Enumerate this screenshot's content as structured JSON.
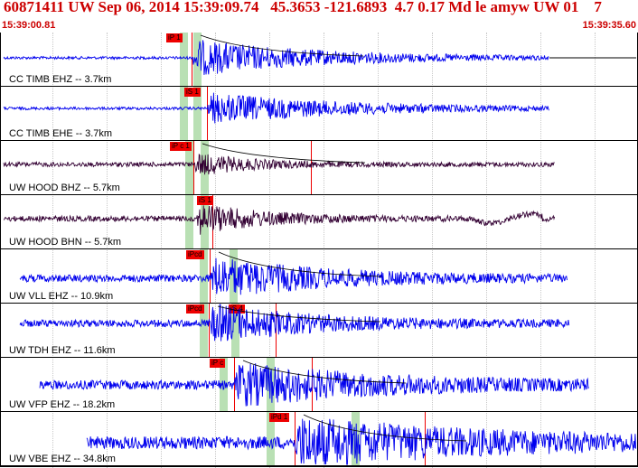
{
  "header": {
    "title": "60871411 UW Sep 06, 2014 15:39:09.74   45.3653 -121.6893  4.7 0.17 Md le amyw UW 01    7",
    "start_time": "15:39:00.81",
    "end_time": "15:39:35.60"
  },
  "colors": {
    "header_text": "#cc0000",
    "trace_primary": "#0000ee",
    "trace_secondary": "#330033",
    "pick_flag": "#ee0000",
    "phase_band": "#b9e0b4"
  },
  "channels": [
    {
      "label": "CC TIMB EHZ -- 3.7km",
      "pick": "iP 1"
    },
    {
      "label": "CC TIMB EHE -- 3.7km",
      "pick": "iS 1"
    },
    {
      "label": "UW HOOD BHZ -- 5.7km",
      "pick": "iP c 1"
    },
    {
      "label": "UW HOOD BHN -- 5.7km",
      "pick": "iS 1"
    },
    {
      "label": "UW VLL EHZ -- 10.9km",
      "pick": "iPcd"
    },
    {
      "label": "UW TDH EHZ -- 11.6km",
      "pick": "iPcd",
      "pick2": "iS 4"
    },
    {
      "label": "UW VFP EHZ -- 18.2km",
      "pick": "iP c"
    },
    {
      "label": "UW VBE EHZ -- 34.8km",
      "pick": "iPd 1"
    }
  ]
}
